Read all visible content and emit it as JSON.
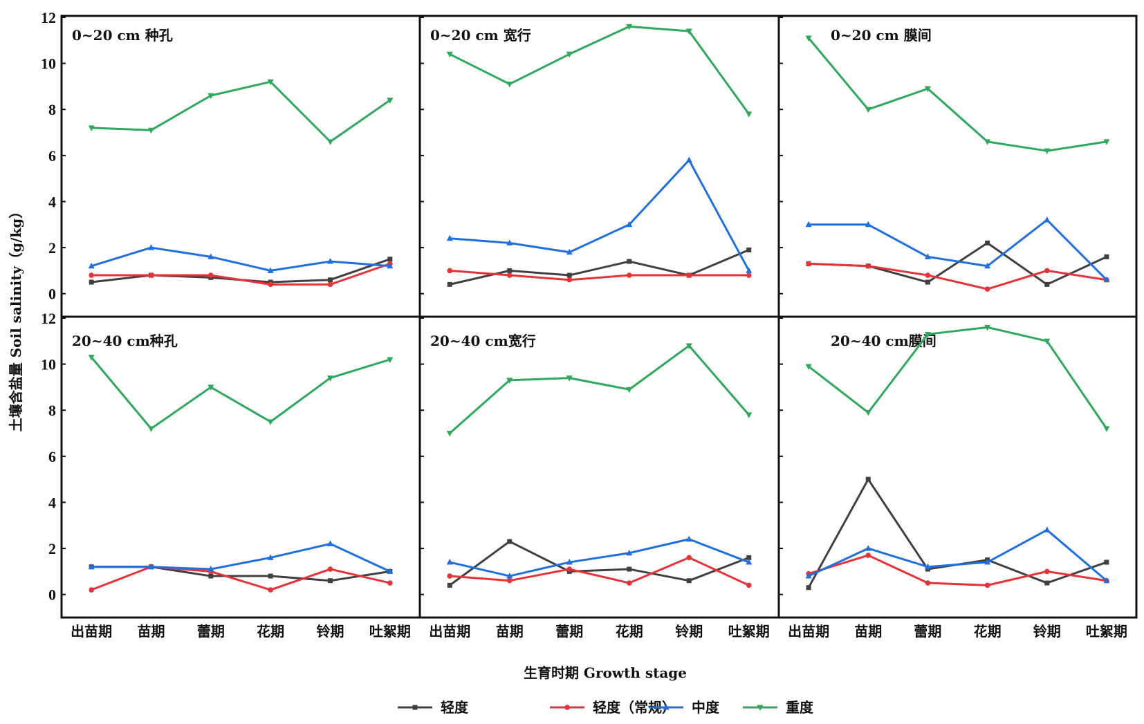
{
  "chart_data": {
    "type": "line",
    "ylabel": "土壤含盐量  Soil salinity（g/kg）",
    "xlabel": "生育时期  Growth stage",
    "categories": [
      "出苗期",
      "苗期",
      "蕾期",
      "花期",
      "铃期",
      "吐絮期"
    ],
    "ylim": [
      -1,
      12
    ],
    "yticks": [
      0,
      2,
      4,
      6,
      8,
      10,
      12
    ],
    "legend_position": "bottom",
    "series_meta": [
      {
        "name": "轻度",
        "color": "#404040",
        "marker": "square"
      },
      {
        "name": "轻度（常规）",
        "color": "#e8323a",
        "marker": "circle"
      },
      {
        "name": "中度",
        "color": "#1f6fe0",
        "marker": "triangle-up"
      },
      {
        "name": "重度",
        "color": "#2ea85c",
        "marker": "triangle-down"
      }
    ],
    "panels": [
      {
        "title": "0~20 cm 种孔",
        "series": [
          [
            0.5,
            0.8,
            0.7,
            0.5,
            0.6,
            1.5
          ],
          [
            0.8,
            0.8,
            0.8,
            0.4,
            0.4,
            1.3
          ],
          [
            1.2,
            2.0,
            1.6,
            1.0,
            1.4,
            1.2
          ],
          [
            7.2,
            7.1,
            8.6,
            9.2,
            6.6,
            8.4
          ]
        ]
      },
      {
        "title": "0~20 cm 宽行",
        "series": [
          [
            0.4,
            1.0,
            0.8,
            1.4,
            0.8,
            1.9
          ],
          [
            1.0,
            0.8,
            0.6,
            0.8,
            0.8,
            0.8
          ],
          [
            2.4,
            2.2,
            1.8,
            3.0,
            5.8,
            1.0
          ],
          [
            10.4,
            9.1,
            10.4,
            11.6,
            11.4,
            7.8
          ]
        ]
      },
      {
        "title": "0~20 cm 膜间",
        "series": [
          [
            1.3,
            1.2,
            0.5,
            2.2,
            0.4,
            1.6
          ],
          [
            1.3,
            1.2,
            0.8,
            0.2,
            1.0,
            0.6
          ],
          [
            3.0,
            3.0,
            1.6,
            1.2,
            3.2,
            0.6
          ],
          [
            11.1,
            8.0,
            8.9,
            6.6,
            6.2,
            6.6
          ]
        ]
      },
      {
        "title": "20~40 cm种孔",
        "series": [
          [
            1.2,
            1.2,
            0.8,
            0.8,
            0.6,
            1.0
          ],
          [
            0.2,
            1.2,
            1.0,
            0.2,
            1.1,
            0.5
          ],
          [
            1.2,
            1.2,
            1.1,
            1.6,
            2.2,
            1.0
          ],
          [
            10.3,
            7.2,
            9.0,
            7.5,
            9.4,
            10.2
          ]
        ]
      },
      {
        "title": "20~40 cm宽行",
        "series": [
          [
            0.4,
            2.3,
            1.0,
            1.1,
            0.6,
            1.6
          ],
          [
            0.8,
            0.6,
            1.1,
            0.5,
            1.6,
            0.4
          ],
          [
            1.4,
            0.8,
            1.4,
            1.8,
            2.4,
            1.4
          ],
          [
            7.0,
            9.3,
            9.4,
            8.9,
            10.8,
            7.8
          ]
        ]
      },
      {
        "title": "20~40 cm膜间",
        "series": [
          [
            0.3,
            5.0,
            1.1,
            1.5,
            0.5,
            1.4
          ],
          [
            0.9,
            1.7,
            0.5,
            0.4,
            1.0,
            0.6
          ],
          [
            0.8,
            2.0,
            1.2,
            1.4,
            2.8,
            0.6
          ],
          [
            9.9,
            7.9,
            11.3,
            11.6,
            11.0,
            7.2
          ]
        ]
      }
    ]
  }
}
